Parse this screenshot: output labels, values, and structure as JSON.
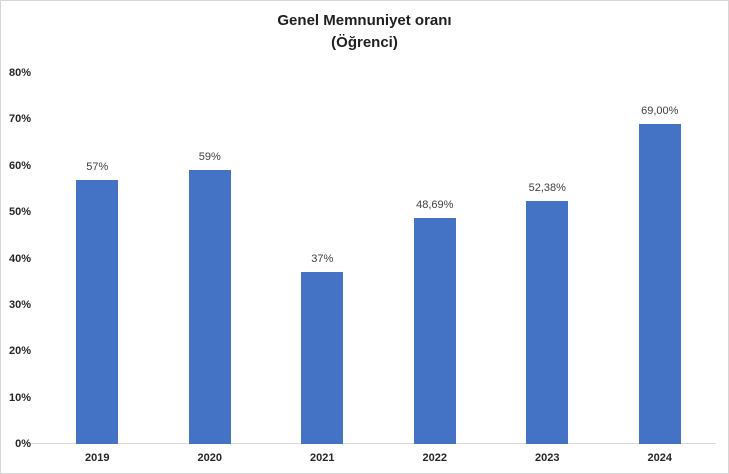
{
  "chart": {
    "title_line1": "Genel Memnuniyet oranı",
    "title_line2": "(Öğrenci)"
  },
  "chart_data": {
    "type": "bar",
    "title": "Genel Memnuniyet oranı (Öğrenci)",
    "categories": [
      "2019",
      "2020",
      "2021",
      "2022",
      "2023",
      "2024"
    ],
    "values": [
      57,
      59,
      37,
      48.69,
      52.38,
      69
    ],
    "data_labels": [
      "57%",
      "59%",
      "37%",
      "48,69%",
      "52,38%",
      "69,00%"
    ],
    "y_ticks": [
      "0%",
      "10%",
      "20%",
      "30%",
      "40%",
      "50%",
      "60%",
      "70%",
      "80%"
    ],
    "y_tick_values": [
      0,
      10,
      20,
      30,
      40,
      50,
      60,
      70,
      80
    ],
    "ylim": [
      0,
      80
    ],
    "xlabel": "",
    "ylabel": "",
    "grid": false,
    "legend": "none",
    "bar_color": "#4472C4",
    "axis_line_color": "#D9D9D9",
    "background_color": "#FFFFFF"
  }
}
